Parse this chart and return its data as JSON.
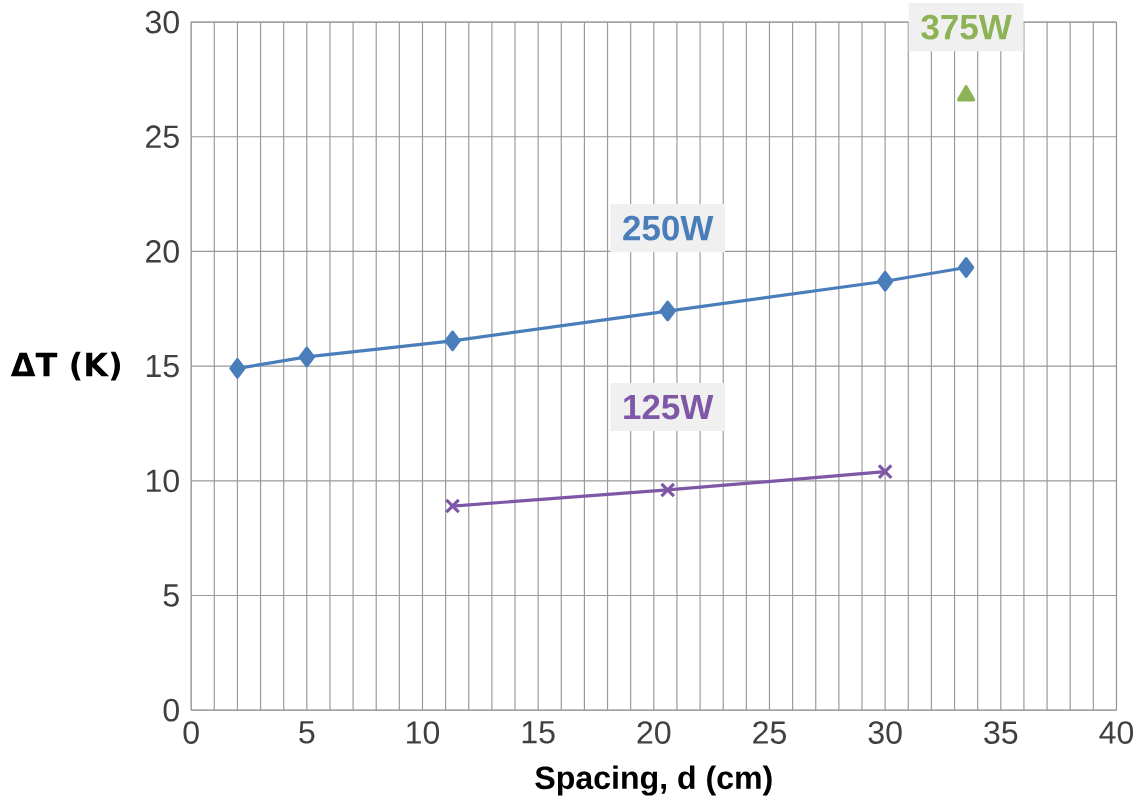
{
  "chart_data": {
    "type": "line",
    "xlabel": "Spacing, d (cm)",
    "ylabel": "ΔT (K)",
    "xlim": [
      0,
      40
    ],
    "xticks": [
      0,
      5,
      10,
      15,
      20,
      25,
      30,
      35,
      40
    ],
    "ylim": [
      0,
      30
    ],
    "yticks": [
      0,
      5,
      10,
      15,
      20,
      25,
      30
    ],
    "grid": true,
    "legend": false,
    "series": [
      {
        "name": "250W",
        "color": "#4a7ebb",
        "marker": "diamond",
        "x": [
          2.0,
          5.0,
          11.3,
          20.6,
          30.0,
          33.5
        ],
        "values": [
          14.9,
          15.4,
          16.1,
          17.4,
          18.7,
          19.3
        ]
      },
      {
        "name": "125W",
        "color": "#7e57a6",
        "marker": "cross",
        "x": [
          11.3,
          20.6,
          30.0
        ],
        "values": [
          8.9,
          9.6,
          10.4
        ]
      },
      {
        "name": "375W",
        "color": "#8db356",
        "marker": "triangle",
        "x": [
          33.5
        ],
        "values": [
          26.8
        ]
      }
    ]
  }
}
